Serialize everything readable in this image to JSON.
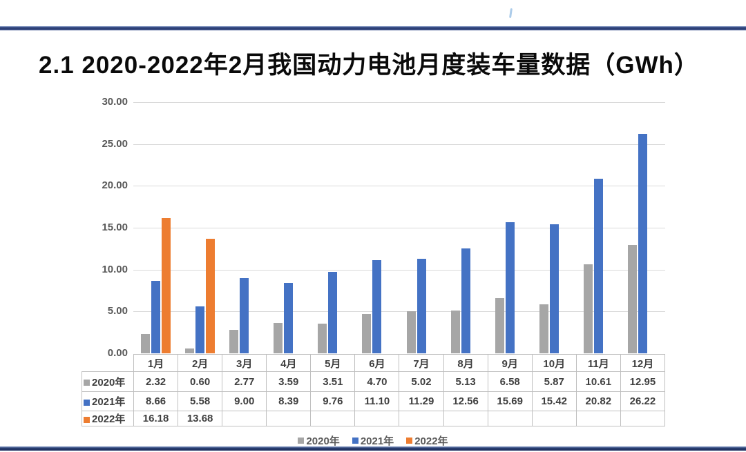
{
  "page": {
    "title": "2.1 2020-2022年2月我国动力电池月度装车量数据（GWh）"
  },
  "decorations": {
    "top_rule_color": "#2B3D73",
    "bottom_rule_color": "#24386B",
    "tick_artifact_color": "#9DC3E6"
  },
  "chart_data": {
    "type": "bar",
    "title": "2020-2022年2月我国动力电池月度装车量数据",
    "unit": "GWh",
    "categories": [
      "1月",
      "2月",
      "3月",
      "4月",
      "5月",
      "6月",
      "7月",
      "8月",
      "9月",
      "10月",
      "11月",
      "12月"
    ],
    "series": [
      {
        "name": "2020年",
        "color": "#A6A6A6",
        "values": [
          2.32,
          0.6,
          2.77,
          3.59,
          3.51,
          4.7,
          5.02,
          5.13,
          6.58,
          5.87,
          10.61,
          12.95
        ]
      },
      {
        "name": "2021年",
        "color": "#4472C4",
        "values": [
          8.66,
          5.58,
          9.0,
          8.39,
          9.76,
          11.1,
          11.29,
          12.56,
          15.69,
          15.42,
          20.82,
          26.22
        ]
      },
      {
        "name": "2022年",
        "color": "#ED7D31",
        "values": [
          16.18,
          13.68,
          null,
          null,
          null,
          null,
          null,
          null,
          null,
          null,
          null,
          null
        ]
      }
    ],
    "ylim": [
      0,
      30
    ],
    "ytick_step": 5,
    "ytick_labels": [
      "0.00",
      "5.00",
      "10.00",
      "15.00",
      "20.00",
      "25.00",
      "30.00"
    ],
    "grid": true,
    "gridline_color": "#D9D9D9",
    "legend_position": "bottom",
    "data_table_shown": true
  }
}
